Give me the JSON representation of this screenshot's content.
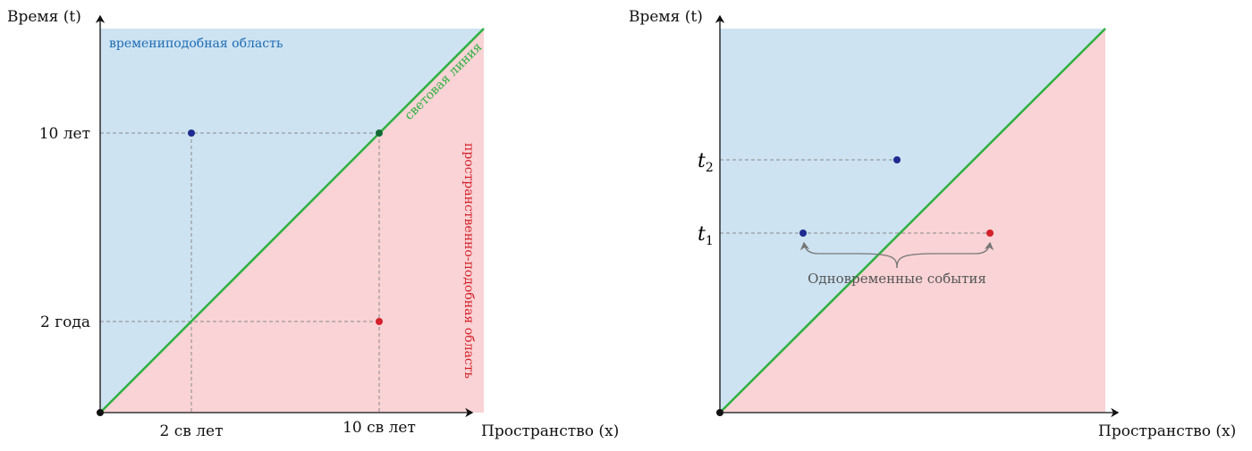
{
  "colors": {
    "timelike": "#cde3f1",
    "spacelike": "#f9d3d5",
    "light": "#2db140",
    "blue": "#1f2b8f",
    "red": "#d4202a",
    "green": "#126b34"
  },
  "left": {
    "y_axis_label": "Время (t)",
    "x_axis_label": "Пространство (x)",
    "timelike_label": "времениподобная область",
    "light_label": "световая линия",
    "spacelike_label": "пространственно-подобная область",
    "y_ticks": [
      "10 лет",
      "2 года"
    ],
    "x_ticks": [
      "2 св лет",
      "10 св лет"
    ]
  },
  "right": {
    "y_axis_label": "Время (t)",
    "x_axis_label": "Пространство (x)",
    "y_ticks": [
      "t2",
      "t1"
    ],
    "annotation": "Одновременные события"
  }
}
